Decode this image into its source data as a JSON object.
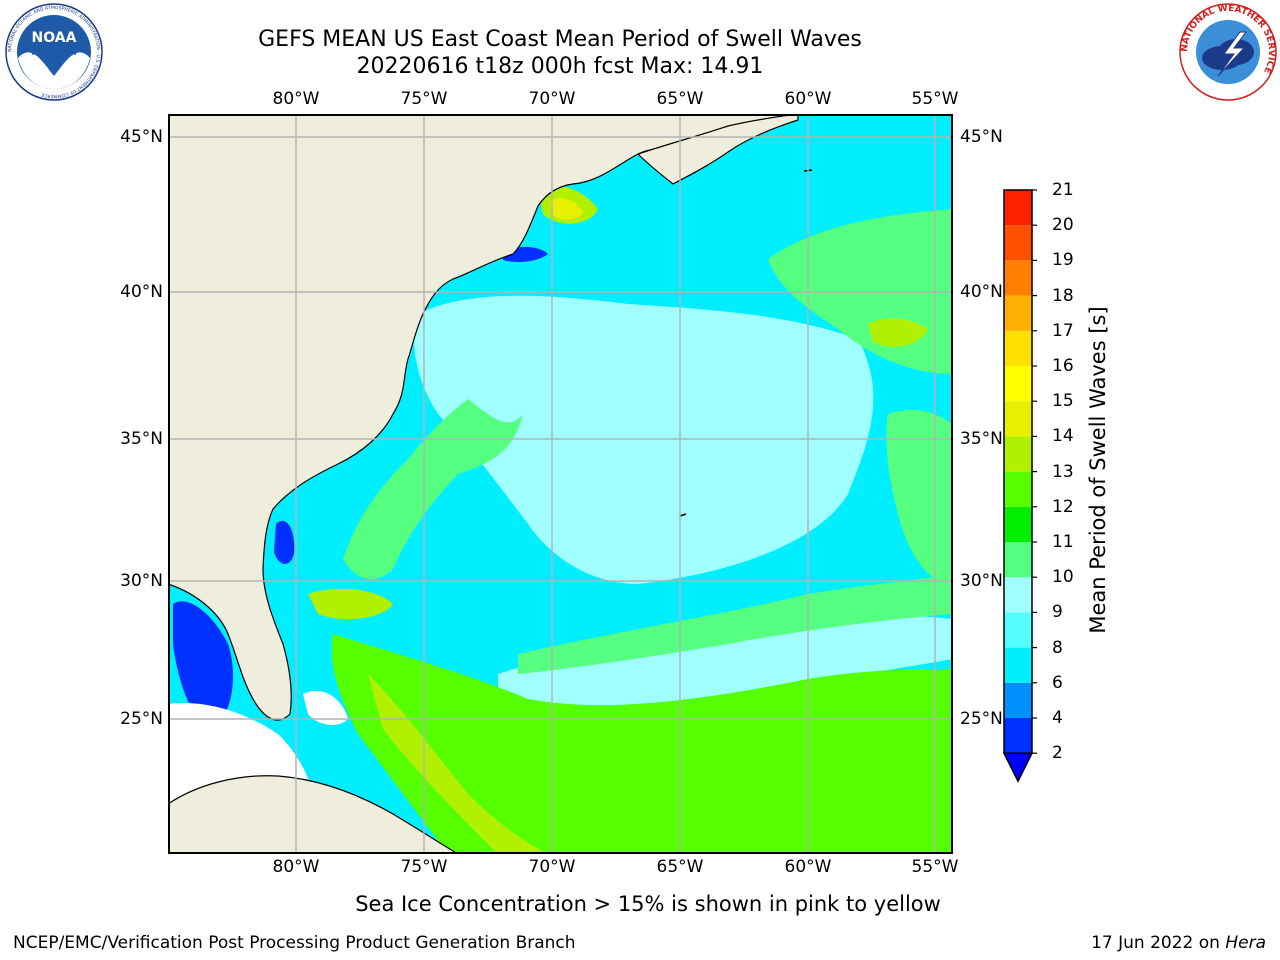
{
  "title": {
    "line1": "GEFS MEAN US East Coast Mean Period of Swell Waves",
    "line2": "20220616 t18z 000h fcst   Max: 14.91"
  },
  "map": {
    "lon_ticks": [
      "80°W",
      "75°W",
      "70°W",
      "65°W",
      "60°W",
      "55°W"
    ],
    "lat_ticks": [
      "45°N",
      "40°N",
      "35°N",
      "30°N",
      "25°N"
    ],
    "land_color": "#efeedc",
    "grid_color": "#b4b4b4",
    "coast_color": "#000000"
  },
  "colorbar": {
    "title": "Mean Period of Swell Waves [s]",
    "levels": [
      "2",
      "4",
      "6",
      "8",
      "9",
      "10",
      "11",
      "12",
      "13",
      "14",
      "15",
      "16",
      "17",
      "18",
      "19",
      "20",
      "21"
    ],
    "colors": [
      "#0030ff",
      "#0090ff",
      "#00eeff",
      "#55ffff",
      "#a0ffff",
      "#55ff80",
      "#00ee00",
      "#55ff00",
      "#b0f000",
      "#e6f000",
      "#ffff00",
      "#ffe000",
      "#ffb000",
      "#ff8000",
      "#ff5000",
      "#ff2000"
    ],
    "extend_color": "#0000ff"
  },
  "footnote": "Sea Ice Concentration > 15% is shown in pink to yellow",
  "credit_left": "NCEP/EMC/Verification Post Processing Product Generation Branch",
  "credit_right_date": "17 Jun 2022 on",
  "credit_right_machine": "Hera",
  "logos": {
    "noaa_text": "NOAA",
    "noaa_ring_text": "NATIONAL OCEANIC AND ATMOSPHERIC ADMINISTRATION · U.S. DEPARTMENT OF COMMERCE",
    "nws_ring_text": "NATIONAL WEATHER SERVICE"
  }
}
